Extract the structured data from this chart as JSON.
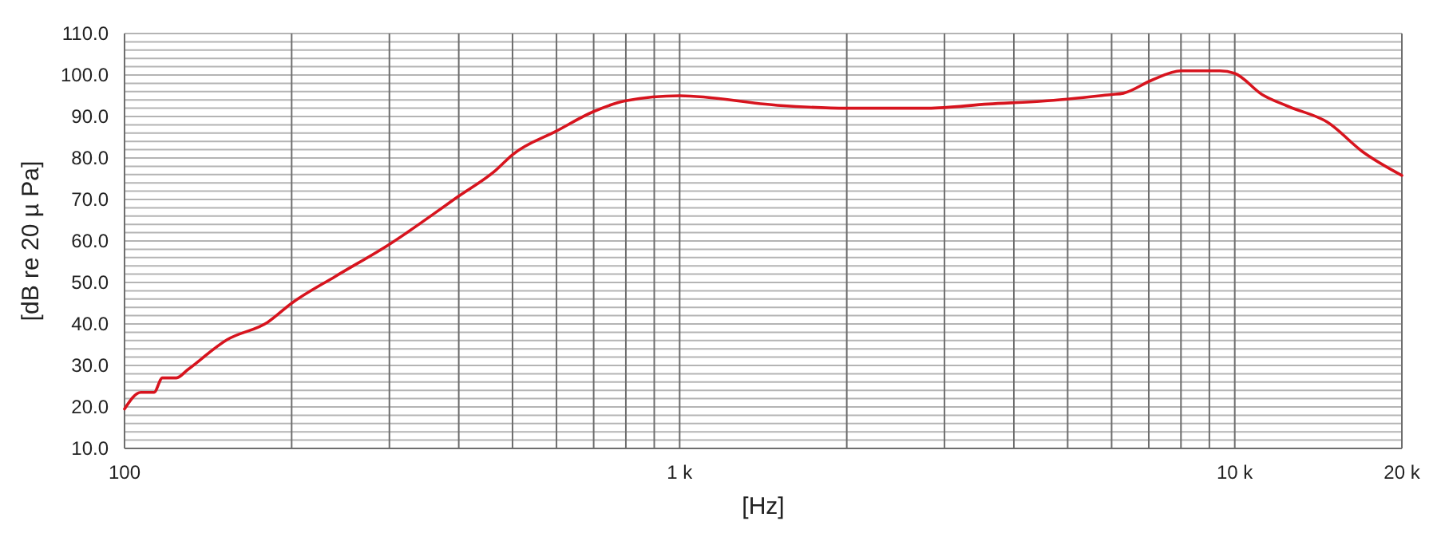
{
  "chart_data": {
    "type": "line",
    "xlabel": "[Hz]",
    "ylabel": "[dB re 20 µ Pa]",
    "log": "x",
    "grid": true,
    "marker": "none",
    "line_style": "solid",
    "xlim": [
      100,
      20000
    ],
    "xticks": [
      {
        "value": 100,
        "label": "100"
      },
      {
        "value": 200,
        "label": null
      },
      {
        "value": 300,
        "label": null
      },
      {
        "value": 400,
        "label": null
      },
      {
        "value": 500,
        "label": null
      },
      {
        "value": 600,
        "label": null
      },
      {
        "value": 700,
        "label": null
      },
      {
        "value": 800,
        "label": null
      },
      {
        "value": 900,
        "label": null
      },
      {
        "value": 1000,
        "label": "1 k"
      },
      {
        "value": 2000,
        "label": null
      },
      {
        "value": 3000,
        "label": null
      },
      {
        "value": 4000,
        "label": null
      },
      {
        "value": 5000,
        "label": null
      },
      {
        "value": 6000,
        "label": null
      },
      {
        "value": 7000,
        "label": null
      },
      {
        "value": 8000,
        "label": null
      },
      {
        "value": 9000,
        "label": null
      },
      {
        "value": 10000,
        "label": "10 k"
      },
      {
        "value": 20000,
        "label": "20 k"
      }
    ],
    "ylim": [
      10,
      110
    ],
    "yticks": [
      {
        "value": 10,
        "label": "10.0"
      },
      {
        "value": 12,
        "label": null
      },
      {
        "value": 14,
        "label": null
      },
      {
        "value": 16,
        "label": null
      },
      {
        "value": 18,
        "label": null
      },
      {
        "value": 20,
        "label": "20.0"
      },
      {
        "value": 22,
        "label": null
      },
      {
        "value": 24,
        "label": null
      },
      {
        "value": 26,
        "label": null
      },
      {
        "value": 28,
        "label": null
      },
      {
        "value": 30,
        "label": "30.0"
      },
      {
        "value": 32,
        "label": null
      },
      {
        "value": 34,
        "label": null
      },
      {
        "value": 36,
        "label": null
      },
      {
        "value": 38,
        "label": null
      },
      {
        "value": 40,
        "label": "40.0"
      },
      {
        "value": 42,
        "label": null
      },
      {
        "value": 44,
        "label": null
      },
      {
        "value": 46,
        "label": null
      },
      {
        "value": 48,
        "label": null
      },
      {
        "value": 50,
        "label": "50.0"
      },
      {
        "value": 52,
        "label": null
      },
      {
        "value": 54,
        "label": null
      },
      {
        "value": 56,
        "label": null
      },
      {
        "value": 58,
        "label": null
      },
      {
        "value": 60,
        "label": "60.0"
      },
      {
        "value": 62,
        "label": null
      },
      {
        "value": 64,
        "label": null
      },
      {
        "value": 66,
        "label": null
      },
      {
        "value": 68,
        "label": null
      },
      {
        "value": 70,
        "label": "70.0"
      },
      {
        "value": 72,
        "label": null
      },
      {
        "value": 74,
        "label": null
      },
      {
        "value": 76,
        "label": null
      },
      {
        "value": 78,
        "label": null
      },
      {
        "value": 80,
        "label": "80.0"
      },
      {
        "value": 82,
        "label": null
      },
      {
        "value": 84,
        "label": null
      },
      {
        "value": 86,
        "label": null
      },
      {
        "value": 88,
        "label": null
      },
      {
        "value": 90,
        "label": "90.0"
      },
      {
        "value": 92,
        "label": null
      },
      {
        "value": 94,
        "label": null
      },
      {
        "value": 96,
        "label": null
      },
      {
        "value": 98,
        "label": null
      },
      {
        "value": 100,
        "label": "100.0"
      },
      {
        "value": 102,
        "label": null
      },
      {
        "value": 104,
        "label": null
      },
      {
        "value": 106,
        "label": null
      },
      {
        "value": 108,
        "label": null
      },
      {
        "value": 110,
        "label": "110.0"
      }
    ],
    "series": [
      {
        "color": "#d7141e",
        "x": [
          100,
          107,
          113,
          117,
          124,
          130,
          153,
          181,
          200,
          240,
          300,
          400,
          466,
          500,
          600,
          700,
          800,
          1000,
          1500,
          2000,
          2800,
          3600,
          4500,
          6000,
          6300,
          7100,
          8000,
          9400,
          10000,
          11200,
          12500,
          14700,
          17000,
          20000
        ],
        "values": [
          19.5,
          23.5,
          23.5,
          27,
          27,
          29,
          36.2,
          40.4,
          45,
          51.5,
          59.2,
          70.8,
          77,
          80.8,
          86.5,
          91.2,
          93.8,
          95,
          92.7,
          92,
          92,
          93,
          93.7,
          95.3,
          95.6,
          98.8,
          101,
          101,
          100.4,
          95.3,
          92.4,
          88.6,
          81.5,
          75.8
        ]
      }
    ]
  }
}
